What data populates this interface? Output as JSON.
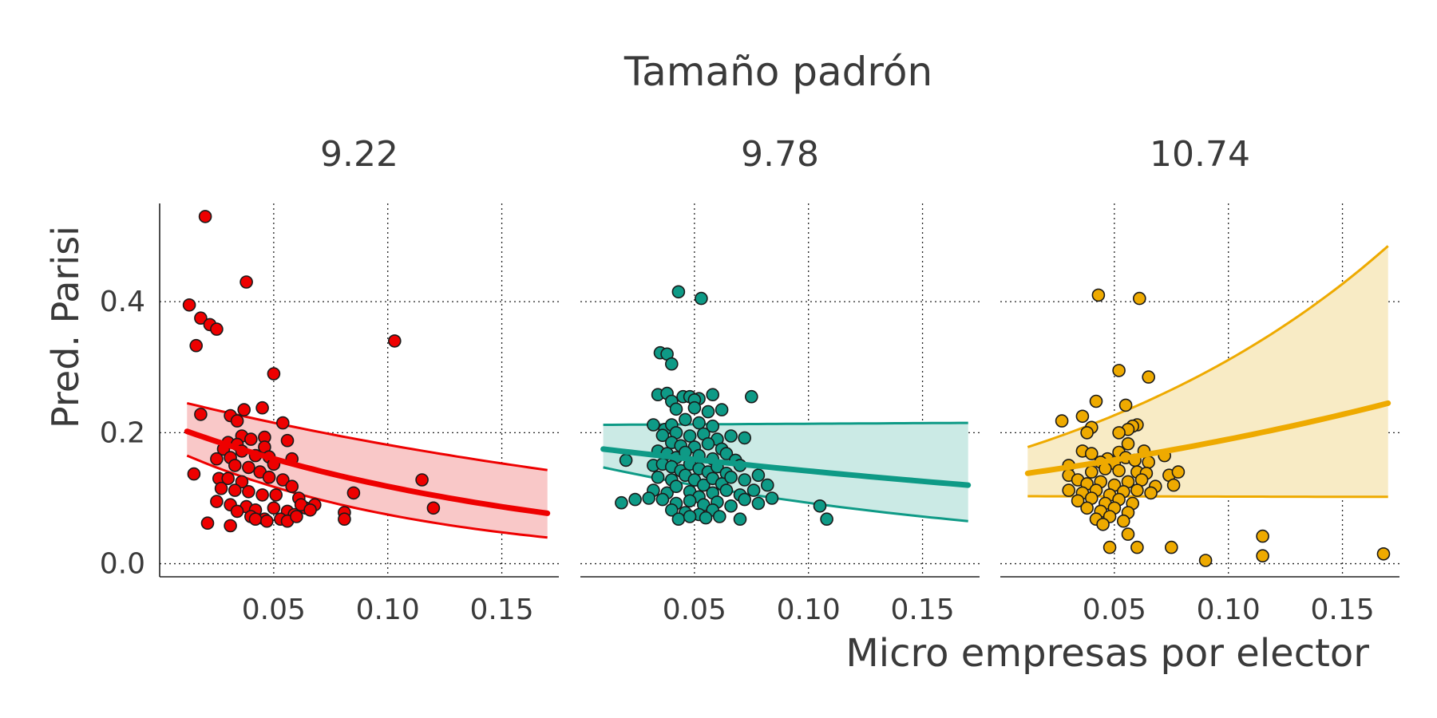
{
  "chart_data": {
    "type": "scatter",
    "title": "Tamaño padrón",
    "xlabel": "Micro empresas por elector",
    "ylabel": "Pred. Parisi",
    "xlim": [
      0.0,
      0.175
    ],
    "ylim": [
      -0.02,
      0.55
    ],
    "x_ticks": [
      0.05,
      0.1,
      0.15
    ],
    "x_tick_labels": [
      "0.05",
      "0.10",
      "0.15"
    ],
    "y_ticks": [
      0.0,
      0.2,
      0.4
    ],
    "y_tick_labels": [
      "0.0",
      "0.2",
      "0.4"
    ],
    "grid": "dotted",
    "panels": [
      {
        "label": "9.22",
        "color": "#ee0000",
        "fill": "#f9c8c8",
        "fit": {
          "x": [
            0.012,
            0.17
          ],
          "y": [
            0.202,
            0.077
          ],
          "lower": [
            0.165,
            0.04
          ],
          "upper": [
            0.245,
            0.143
          ]
        },
        "points": [
          [
            0.02,
            0.53
          ],
          [
            0.038,
            0.43
          ],
          [
            0.013,
            0.395
          ],
          [
            0.018,
            0.375
          ],
          [
            0.022,
            0.365
          ],
          [
            0.025,
            0.358
          ],
          [
            0.016,
            0.333
          ],
          [
            0.103,
            0.34
          ],
          [
            0.05,
            0.29
          ],
          [
            0.018,
            0.228
          ],
          [
            0.031,
            0.226
          ],
          [
            0.034,
            0.218
          ],
          [
            0.037,
            0.235
          ],
          [
            0.045,
            0.238
          ],
          [
            0.054,
            0.215
          ],
          [
            0.036,
            0.195
          ],
          [
            0.04,
            0.19
          ],
          [
            0.046,
            0.193
          ],
          [
            0.056,
            0.188
          ],
          [
            0.03,
            0.185
          ],
          [
            0.034,
            0.182
          ],
          [
            0.028,
            0.175
          ],
          [
            0.036,
            0.172
          ],
          [
            0.042,
            0.165
          ],
          [
            0.046,
            0.178
          ],
          [
            0.048,
            0.163
          ],
          [
            0.025,
            0.16
          ],
          [
            0.031,
            0.162
          ],
          [
            0.058,
            0.16
          ],
          [
            0.05,
            0.152
          ],
          [
            0.033,
            0.15
          ],
          [
            0.039,
            0.147
          ],
          [
            0.044,
            0.14
          ],
          [
            0.015,
            0.137
          ],
          [
            0.026,
            0.13
          ],
          [
            0.03,
            0.13
          ],
          [
            0.036,
            0.125
          ],
          [
            0.048,
            0.132
          ],
          [
            0.054,
            0.128
          ],
          [
            0.058,
            0.118
          ],
          [
            0.027,
            0.115
          ],
          [
            0.033,
            0.112
          ],
          [
            0.039,
            0.11
          ],
          [
            0.045,
            0.105
          ],
          [
            0.051,
            0.105
          ],
          [
            0.061,
            0.1
          ],
          [
            0.025,
            0.095
          ],
          [
            0.031,
            0.09
          ],
          [
            0.038,
            0.087
          ],
          [
            0.042,
            0.082
          ],
          [
            0.05,
            0.085
          ],
          [
            0.056,
            0.08
          ],
          [
            0.064,
            0.085
          ],
          [
            0.034,
            0.08
          ],
          [
            0.04,
            0.072
          ],
          [
            0.046,
            0.068
          ],
          [
            0.053,
            0.068
          ],
          [
            0.059,
            0.075
          ],
          [
            0.062,
            0.09
          ],
          [
            0.068,
            0.09
          ],
          [
            0.081,
            0.078
          ],
          [
            0.081,
            0.068
          ],
          [
            0.085,
            0.108
          ],
          [
            0.115,
            0.128
          ],
          [
            0.12,
            0.085
          ],
          [
            0.021,
            0.062
          ],
          [
            0.031,
            0.058
          ],
          [
            0.042,
            0.068
          ],
          [
            0.047,
            0.065
          ],
          [
            0.056,
            0.065
          ],
          [
            0.06,
            0.072
          ],
          [
            0.066,
            0.082
          ]
        ]
      },
      {
        "label": "9.78",
        "color": "#0e9a86",
        "fill": "#cbeae5",
        "fit": {
          "x": [
            0.01,
            0.17
          ],
          "y": [
            0.175,
            0.12
          ],
          "lower": [
            0.147,
            0.065
          ],
          "upper": [
            0.212,
            0.215
          ]
        },
        "points": [
          [
            0.043,
            0.415
          ],
          [
            0.053,
            0.405
          ],
          [
            0.035,
            0.322
          ],
          [
            0.038,
            0.32
          ],
          [
            0.04,
            0.305
          ],
          [
            0.034,
            0.258
          ],
          [
            0.038,
            0.26
          ],
          [
            0.045,
            0.255
          ],
          [
            0.048,
            0.255
          ],
          [
            0.052,
            0.252
          ],
          [
            0.058,
            0.258
          ],
          [
            0.075,
            0.255
          ],
          [
            0.05,
            0.25
          ],
          [
            0.04,
            0.248
          ],
          [
            0.042,
            0.236
          ],
          [
            0.05,
            0.238
          ],
          [
            0.056,
            0.232
          ],
          [
            0.062,
            0.235
          ],
          [
            0.032,
            0.212
          ],
          [
            0.037,
            0.205
          ],
          [
            0.04,
            0.212
          ],
          [
            0.046,
            0.22
          ],
          [
            0.052,
            0.215
          ],
          [
            0.058,
            0.21
          ],
          [
            0.036,
            0.196
          ],
          [
            0.042,
            0.2
          ],
          [
            0.048,
            0.195
          ],
          [
            0.054,
            0.198
          ],
          [
            0.06,
            0.19
          ],
          [
            0.066,
            0.195
          ],
          [
            0.072,
            0.192
          ],
          [
            0.04,
            0.185
          ],
          [
            0.044,
            0.18
          ],
          [
            0.05,
            0.178
          ],
          [
            0.056,
            0.183
          ],
          [
            0.062,
            0.175
          ],
          [
            0.034,
            0.172
          ],
          [
            0.038,
            0.168
          ],
          [
            0.042,
            0.162
          ],
          [
            0.046,
            0.17
          ],
          [
            0.052,
            0.165
          ],
          [
            0.058,
            0.16
          ],
          [
            0.064,
            0.168
          ],
          [
            0.068,
            0.158
          ],
          [
            0.02,
            0.158
          ],
          [
            0.032,
            0.15
          ],
          [
            0.036,
            0.152
          ],
          [
            0.04,
            0.148
          ],
          [
            0.044,
            0.142
          ],
          [
            0.048,
            0.152
          ],
          [
            0.052,
            0.145
          ],
          [
            0.056,
            0.14
          ],
          [
            0.06,
            0.148
          ],
          [
            0.064,
            0.138
          ],
          [
            0.07,
            0.15
          ],
          [
            0.034,
            0.132
          ],
          [
            0.04,
            0.128
          ],
          [
            0.046,
            0.135
          ],
          [
            0.05,
            0.128
          ],
          [
            0.054,
            0.12
          ],
          [
            0.058,
            0.13
          ],
          [
            0.062,
            0.122
          ],
          [
            0.066,
            0.132
          ],
          [
            0.072,
            0.128
          ],
          [
            0.078,
            0.135
          ],
          [
            0.032,
            0.112
          ],
          [
            0.038,
            0.108
          ],
          [
            0.042,
            0.118
          ],
          [
            0.048,
            0.11
          ],
          [
            0.052,
            0.102
          ],
          [
            0.058,
            0.108
          ],
          [
            0.064,
            0.112
          ],
          [
            0.07,
            0.105
          ],
          [
            0.076,
            0.112
          ],
          [
            0.082,
            0.12
          ],
          [
            0.018,
            0.093
          ],
          [
            0.024,
            0.098
          ],
          [
            0.03,
            0.1
          ],
          [
            0.036,
            0.098
          ],
          [
            0.042,
            0.092
          ],
          [
            0.048,
            0.096
          ],
          [
            0.054,
            0.09
          ],
          [
            0.06,
            0.094
          ],
          [
            0.066,
            0.088
          ],
          [
            0.072,
            0.098
          ],
          [
            0.078,
            0.092
          ],
          [
            0.084,
            0.1
          ],
          [
            0.04,
            0.082
          ],
          [
            0.046,
            0.078
          ],
          [
            0.052,
            0.075
          ],
          [
            0.058,
            0.082
          ],
          [
            0.043,
            0.068
          ],
          [
            0.048,
            0.072
          ],
          [
            0.055,
            0.07
          ],
          [
            0.061,
            0.072
          ],
          [
            0.07,
            0.068
          ],
          [
            0.105,
            0.088
          ],
          [
            0.108,
            0.068
          ]
        ]
      },
      {
        "label": "10.74",
        "color": "#eeaa00",
        "fill": "#f8ebc5",
        "fit": {
          "x": [
            0.012,
            0.17
          ],
          "y": [
            0.138,
            0.245
          ],
          "lower": [
            0.103,
            0.102
          ],
          "upper": [
            0.178,
            0.485
          ]
        },
        "points": [
          [
            0.043,
            0.41
          ],
          [
            0.061,
            0.405
          ],
          [
            0.052,
            0.295
          ],
          [
            0.065,
            0.285
          ],
          [
            0.042,
            0.248
          ],
          [
            0.055,
            0.242
          ],
          [
            0.036,
            0.225
          ],
          [
            0.027,
            0.218
          ],
          [
            0.06,
            0.212
          ],
          [
            0.058,
            0.21
          ],
          [
            0.04,
            0.208
          ],
          [
            0.056,
            0.205
          ],
          [
            0.052,
            0.2
          ],
          [
            0.038,
            0.2
          ],
          [
            0.056,
            0.183
          ],
          [
            0.036,
            0.172
          ],
          [
            0.04,
            0.168
          ],
          [
            0.052,
            0.17
          ],
          [
            0.063,
            0.172
          ],
          [
            0.072,
            0.165
          ],
          [
            0.047,
            0.16
          ],
          [
            0.055,
            0.162
          ],
          [
            0.059,
            0.158
          ],
          [
            0.03,
            0.15
          ],
          [
            0.044,
            0.155
          ],
          [
            0.05,
            0.153
          ],
          [
            0.065,
            0.155
          ],
          [
            0.03,
            0.135
          ],
          [
            0.04,
            0.14
          ],
          [
            0.046,
            0.145
          ],
          [
            0.052,
            0.142
          ],
          [
            0.06,
            0.14
          ],
          [
            0.064,
            0.138
          ],
          [
            0.074,
            0.135
          ],
          [
            0.078,
            0.14
          ],
          [
            0.034,
            0.128
          ],
          [
            0.038,
            0.122
          ],
          [
            0.044,
            0.125
          ],
          [
            0.05,
            0.12
          ],
          [
            0.056,
            0.125
          ],
          [
            0.062,
            0.128
          ],
          [
            0.068,
            0.118
          ],
          [
            0.076,
            0.12
          ],
          [
            0.03,
            0.112
          ],
          [
            0.036,
            0.108
          ],
          [
            0.042,
            0.112
          ],
          [
            0.048,
            0.105
          ],
          [
            0.054,
            0.11
          ],
          [
            0.06,
            0.112
          ],
          [
            0.066,
            0.108
          ],
          [
            0.034,
            0.096
          ],
          [
            0.04,
            0.1
          ],
          [
            0.046,
            0.092
          ],
          [
            0.052,
            0.098
          ],
          [
            0.058,
            0.092
          ],
          [
            0.038,
            0.085
          ],
          [
            0.044,
            0.08
          ],
          [
            0.05,
            0.085
          ],
          [
            0.056,
            0.078
          ],
          [
            0.042,
            0.068
          ],
          [
            0.048,
            0.072
          ],
          [
            0.054,
            0.065
          ],
          [
            0.045,
            0.06
          ],
          [
            0.056,
            0.045
          ],
          [
            0.048,
            0.025
          ],
          [
            0.06,
            0.025
          ],
          [
            0.075,
            0.025
          ],
          [
            0.09,
            0.005
          ],
          [
            0.115,
            0.042
          ],
          [
            0.115,
            0.012
          ],
          [
            0.168,
            0.015
          ]
        ]
      }
    ]
  }
}
